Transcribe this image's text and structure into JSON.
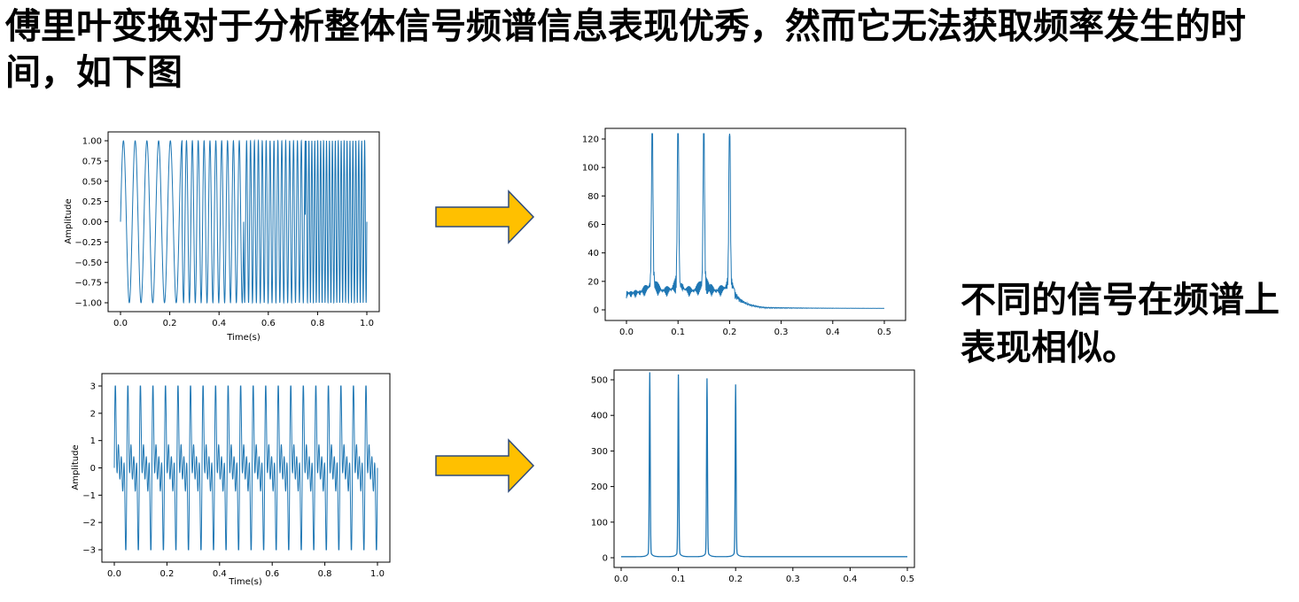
{
  "slide": {
    "title": "傅里叶变换对于分析整体信号频谱信息表现优秀，然而它无法获取频率发生的时间，如下图",
    "note": "不同的信号在频谱上表现相似。"
  },
  "colors": {
    "line": "#1f77b4",
    "arrow_fill": "#ffc000",
    "arrow_stroke": "#2e4a7a"
  },
  "icons": [
    "right-arrow-icon",
    "right-arrow-icon"
  ],
  "chart_data": [
    {
      "type": "line",
      "id": "signal-a",
      "xlabel": "Time(s)",
      "ylabel": "Amplitude",
      "xlim": [
        0,
        1.0
      ],
      "ylim": [
        -1.0,
        1.0
      ],
      "xticks": [
        "0.0",
        "0.2",
        "0.4",
        "0.6",
        "0.8",
        "1.0"
      ],
      "yticks": [
        "1.00",
        "0.75",
        "0.50",
        "0.25",
        "0.00",
        "−0.25",
        "−0.50",
        "−0.75",
        "−1.00"
      ],
      "segments": [
        {
          "t_start": 0.0,
          "t_end": 0.25,
          "freq_hz": 50,
          "amplitude": 1.0
        },
        {
          "t_start": 0.25,
          "t_end": 0.5,
          "freq_hz": 100,
          "amplitude": 1.0
        },
        {
          "t_start": 0.5,
          "t_end": 0.75,
          "freq_hz": 150,
          "amplitude": 1.0
        },
        {
          "t_start": 0.75,
          "t_end": 1.0,
          "freq_hz": 200,
          "amplitude": 1.0
        }
      ]
    },
    {
      "type": "line",
      "id": "spectrum-a",
      "xlabel": "",
      "ylabel": "",
      "xlim": [
        0,
        0.5
      ],
      "ylim": [
        0,
        126
      ],
      "xticks": [
        "0.0",
        "0.1",
        "0.2",
        "0.3",
        "0.4",
        "0.5"
      ],
      "yticks": [
        "120",
        "100",
        "80",
        "60",
        "40",
        "20",
        "0"
      ],
      "peaks": [
        {
          "x": 0.05,
          "y": 125
        },
        {
          "x": 0.1,
          "y": 126
        },
        {
          "x": 0.15,
          "y": 120
        },
        {
          "x": 0.2,
          "y": 126
        }
      ],
      "baseline": 8
    },
    {
      "type": "line",
      "id": "signal-b",
      "xlabel": "Time(s)",
      "ylabel": "Amplitude",
      "xlim": [
        0,
        1.0
      ],
      "ylim": [
        -3.1,
        3.1
      ],
      "xticks": [
        "0.0",
        "0.2",
        "0.4",
        "0.6",
        "0.8",
        "1.0"
      ],
      "yticks": [
        "3",
        "2",
        "1",
        "0",
        "−1",
        "−2",
        "−3"
      ],
      "components_hz": [
        50,
        100,
        150,
        200
      ],
      "amplitude": 3.1
    },
    {
      "type": "line",
      "id": "spectrum-b",
      "xlabel": "",
      "ylabel": "",
      "xlim": [
        0,
        0.5
      ],
      "ylim": [
        0,
        500
      ],
      "xticks": [
        "0.0",
        "0.1",
        "0.2",
        "0.3",
        "0.4",
        "0.5"
      ],
      "yticks": [
        "500",
        "400",
        "300",
        "200",
        "100",
        "0"
      ],
      "peaks": [
        {
          "x": 0.05,
          "y": 500
        },
        {
          "x": 0.1,
          "y": 494
        },
        {
          "x": 0.15,
          "y": 483
        },
        {
          "x": 0.2,
          "y": 466
        }
      ],
      "baseline": 3
    }
  ]
}
